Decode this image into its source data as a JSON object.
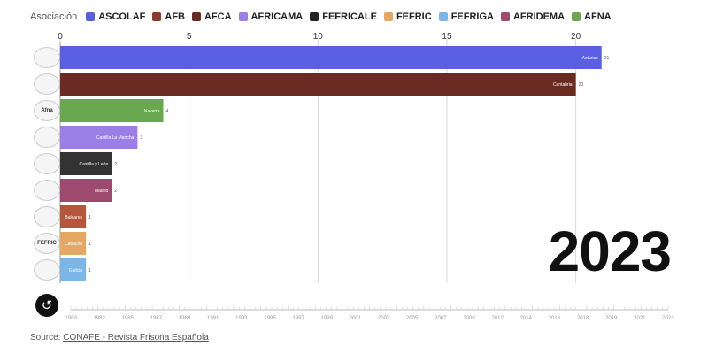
{
  "legend": {
    "title": "Asociación",
    "items": [
      {
        "label": "ASCOLAF",
        "color": "#5a5ee0"
      },
      {
        "label": "AFB",
        "color": "#8a3b2e"
      },
      {
        "label": "AFCA",
        "color": "#6b2b22"
      },
      {
        "label": "AFRICAMA",
        "color": "#9b7ee6"
      },
      {
        "label": "FEFRICALE",
        "color": "#222222"
      },
      {
        "label": "FEFRIC",
        "color": "#e4a862"
      },
      {
        "label": "FEFRIGA",
        "color": "#7bb6e8"
      },
      {
        "label": "AFRIDEMA",
        "color": "#9e4a6e"
      },
      {
        "label": "AFNA",
        "color": "#6aa84f"
      }
    ]
  },
  "chart_data": {
    "type": "bar",
    "orientation": "horizontal",
    "xlim": [
      0,
      23
    ],
    "x_ticks": [
      0,
      5,
      10,
      15,
      20
    ],
    "bars": [
      {
        "region": "Asturias",
        "value": 21,
        "value_label": "21",
        "color": "#5a5ee0"
      },
      {
        "region": "Cantabria",
        "value": 20,
        "value_label": "20",
        "color": "#6b2b22"
      },
      {
        "region": "Navarra",
        "value": 4,
        "value_label": "4",
        "color": "#6aa84f"
      },
      {
        "region": "Castilla La Mancha",
        "value": 3,
        "value_label": "3",
        "color": "#9b7ee6"
      },
      {
        "region": "Castilla y León",
        "value": 2,
        "value_label": "2",
        "color": "#333333"
      },
      {
        "region": "Madrid",
        "value": 2,
        "value_label": "2",
        "color": "#9e4a6e"
      },
      {
        "region": "Baleares",
        "value": 1,
        "value_label": "1",
        "color": "#b5553b"
      },
      {
        "region": "Cataluña",
        "value": 1,
        "value_label": "1",
        "color": "#e4a862"
      },
      {
        "region": "Galicia",
        "value": 1,
        "value_label": "1",
        "color": "#7bb6e8"
      }
    ],
    "timeline": {
      "labels": [
        "1980",
        "1982",
        "1985",
        "1987",
        "1989",
        "1991",
        "1993",
        "1995",
        "1997",
        "1999",
        "2001",
        "2003",
        "2005",
        "2007",
        "2009",
        "2012",
        "2014",
        "2016",
        "2018",
        "2019",
        "2021",
        "2023"
      ]
    }
  },
  "logos": [
    "",
    "",
    "Afna",
    "",
    "",
    "",
    "",
    "FEFRIC",
    ""
  ],
  "year": "2023",
  "source": {
    "prefix": "Source: ",
    "link_text": "CONAFE - Revista Frisona Española"
  }
}
